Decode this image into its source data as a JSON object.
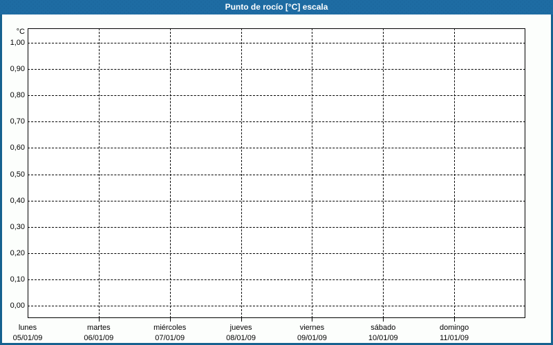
{
  "titlebar": {
    "title": "Punto de rocío [°C] escala"
  },
  "colors": {
    "titlebar_bg": "#1e6ca3",
    "titlebar_dot": "#145e92",
    "frame": "#16618f",
    "page_bg": "#fcfefc",
    "plot_bg": "#ffffff",
    "grid_and_text": "#000000",
    "title_text": "#ffffff"
  },
  "chart_data": {
    "type": "line",
    "title": "Punto de rocío [°C] escala",
    "y_axis": {
      "unit": "°C",
      "tick_labels": [
        "1,00",
        "0,90",
        "0,80",
        "0,70",
        "0,60",
        "0,50",
        "0,40",
        "0,30",
        "0,20",
        "0,10",
        "0,00"
      ],
      "range": [
        0.0,
        1.0
      ],
      "tick_step": 0.1,
      "decimal_separator": ","
    },
    "x_axis": {
      "days": [
        {
          "name": "lunes",
          "date": "05/01/09"
        },
        {
          "name": "martes",
          "date": "06/01/09"
        },
        {
          "name": "miércoles",
          "date": "07/01/09"
        },
        {
          "name": "jueves",
          "date": "08/01/09"
        },
        {
          "name": "viernes",
          "date": "09/01/09"
        },
        {
          "name": "sábado",
          "date": "10/01/09"
        },
        {
          "name": "domingo",
          "date": "11/01/09"
        }
      ]
    },
    "grid": "dashed",
    "legend": "none",
    "series": []
  }
}
